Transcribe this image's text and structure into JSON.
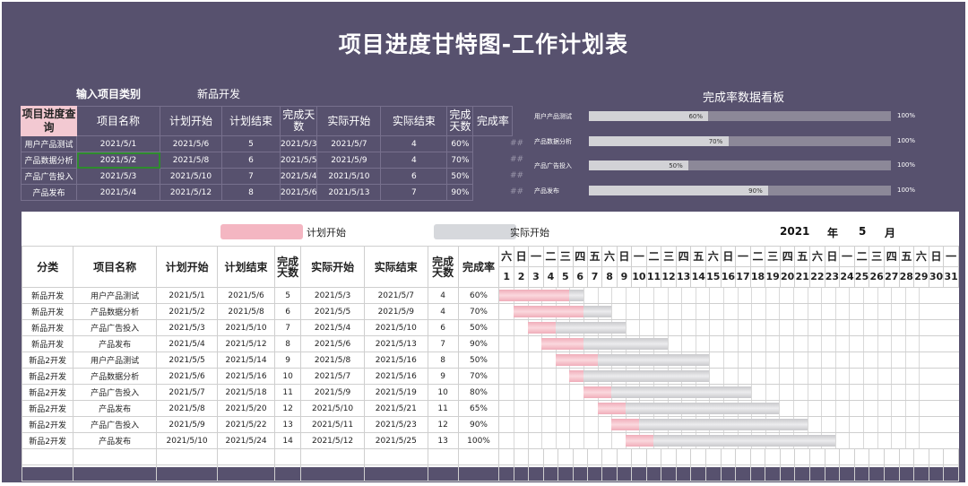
{
  "title": "项目进度甘特图-工作计划表",
  "query": {
    "input_label": "输入项目类别",
    "input_value": "新品开发",
    "side_label": "项目进度查询",
    "headers": [
      "项目名称",
      "计划开始",
      "计划结束",
      "完成天数",
      "实际开始",
      "实际结束",
      "完成天数",
      "完成率"
    ],
    "rows": [
      [
        "用户产品测试",
        "2021/5/1",
        "2021/5/6",
        "5",
        "2021/5/3",
        "2021/5/7",
        "4",
        "60%"
      ],
      [
        "产品数据分析",
        "2021/5/2",
        "2021/5/8",
        "6",
        "2021/5/5",
        "2021/5/9",
        "4",
        "70%"
      ],
      [
        "产品广告投入",
        "2021/5/3",
        "2021/5/10",
        "7",
        "2021/5/4",
        "2021/5/10",
        "6",
        "50%"
      ],
      [
        "产品发布",
        "2021/5/4",
        "2021/5/12",
        "8",
        "2021/5/6",
        "2021/5/13",
        "7",
        "90%"
      ]
    ],
    "overflow": "##"
  },
  "dashboard": {
    "title": "完成率数据看板",
    "max_label": "100%",
    "items": [
      {
        "label": "用户产品测试",
        "value": 60,
        "value_label": "60%"
      },
      {
        "label": "产品数据分析",
        "value": 70,
        "value_label": "70%"
      },
      {
        "label": "产品广告投入",
        "value": 50,
        "value_label": "50%"
      },
      {
        "label": "产品发布",
        "value": 90,
        "value_label": "90%"
      }
    ]
  },
  "legend": {
    "plan": "计划开始",
    "actual": "实际开始",
    "plan_color": "#f4b6c2",
    "actual_color": "#d6d8dc"
  },
  "calendar": {
    "year": "2021",
    "year_unit": "年",
    "month": "5",
    "month_unit": "月"
  },
  "gantt": {
    "headers": [
      "分类",
      "项目名称",
      "计划开始",
      "计划结束",
      "完成天数",
      "实际开始",
      "实际结束",
      "完成天数",
      "完成率"
    ],
    "weekdays": [
      "六",
      "日",
      "一",
      "二",
      "三",
      "四",
      "五",
      "六",
      "日",
      "一",
      "二",
      "三",
      "四",
      "五",
      "六",
      "日",
      "一",
      "二",
      "三",
      "四",
      "五",
      "六",
      "日",
      "一",
      "二",
      "三",
      "四",
      "五",
      "六",
      "日",
      "一"
    ],
    "rows": [
      {
        "cat": "新品开发",
        "name": "用户产品测试",
        "ps": "2021/5/1",
        "pe": "2021/5/6",
        "pd": "5",
        "as": "2021/5/3",
        "ae": "2021/5/7",
        "ad": "4",
        "rate": "60%",
        "p": [
          1,
          5
        ],
        "a": [
          3,
          7
        ]
      },
      {
        "cat": "新品开发",
        "name": "产品数据分析",
        "ps": "2021/5/2",
        "pe": "2021/5/8",
        "pd": "6",
        "as": "2021/5/5",
        "ae": "2021/5/9",
        "ad": "4",
        "rate": "70%",
        "p": [
          2,
          6
        ],
        "a": [
          5,
          9
        ]
      },
      {
        "cat": "新品开发",
        "name": "产品广告投入",
        "ps": "2021/5/3",
        "pe": "2021/5/10",
        "pd": "7",
        "as": "2021/5/4",
        "ae": "2021/5/10",
        "ad": "6",
        "rate": "50%",
        "p": [
          3,
          4
        ],
        "a": [
          4,
          10
        ]
      },
      {
        "cat": "新品开发",
        "name": "产品发布",
        "ps": "2021/5/4",
        "pe": "2021/5/12",
        "pd": "8",
        "as": "2021/5/6",
        "ae": "2021/5/13",
        "ad": "7",
        "rate": "90%",
        "p": [
          4,
          6
        ],
        "a": [
          6,
          13
        ]
      },
      {
        "cat": "新品2开发",
        "name": "用户产品测试",
        "ps": "2021/5/5",
        "pe": "2021/5/14",
        "pd": "9",
        "as": "2021/5/8",
        "ae": "2021/5/16",
        "ad": "8",
        "rate": "50%",
        "p": [
          5,
          7
        ],
        "a": [
          8,
          16
        ]
      },
      {
        "cat": "新品2开发",
        "name": "产品数据分析",
        "ps": "2021/5/6",
        "pe": "2021/5/16",
        "pd": "10",
        "as": "2021/5/7",
        "ae": "2021/5/16",
        "ad": "9",
        "rate": "70%",
        "p": [
          6,
          6
        ],
        "a": [
          7,
          16
        ]
      },
      {
        "cat": "新品2开发",
        "name": "产品广告投入",
        "ps": "2021/5/7",
        "pe": "2021/5/18",
        "pd": "11",
        "as": "2021/5/9",
        "ae": "2021/5/19",
        "ad": "10",
        "rate": "80%",
        "p": [
          7,
          8
        ],
        "a": [
          9,
          19
        ]
      },
      {
        "cat": "新品2开发",
        "name": "产品发布",
        "ps": "2021/5/8",
        "pe": "2021/5/20",
        "pd": "12",
        "as": "2021/5/10",
        "ae": "2021/5/21",
        "ad": "11",
        "rate": "65%",
        "p": [
          8,
          9
        ],
        "a": [
          10,
          21
        ]
      },
      {
        "cat": "新品2开发",
        "name": "产品广告投入",
        "ps": "2021/5/9",
        "pe": "2021/5/22",
        "pd": "13",
        "as": "2021/5/11",
        "ae": "2021/5/23",
        "ad": "12",
        "rate": "90%",
        "p": [
          9,
          10
        ],
        "a": [
          11,
          23
        ]
      },
      {
        "cat": "新品2开发",
        "name": "产品发布",
        "ps": "2021/5/10",
        "pe": "2021/5/24",
        "pd": "14",
        "as": "2021/5/12",
        "ae": "2021/5/25",
        "ad": "13",
        "rate": "100%",
        "p": [
          10,
          11
        ],
        "a": [
          12,
          25
        ]
      }
    ]
  }
}
